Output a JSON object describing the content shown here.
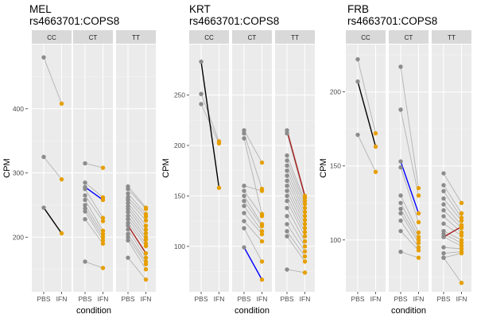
{
  "colors": {
    "panel_bg": "#ebebeb",
    "strip_bg": "#d9d9d9",
    "grid_major": "#ffffff",
    "grey_point": "#8c8c8c",
    "grey_line": "#b3b3b3",
    "ifn_point": "#e69f00",
    "highlight_cc": "#000000",
    "highlight_ct": "#0000ff",
    "highlight_tt": "#a51c1c"
  },
  "chart_data": [
    {
      "type": "line",
      "title": "MEL",
      "subtitle": "rs4663701:COPS8",
      "xlabel": "condition",
      "ylabel": "CPM",
      "ylim": [
        115,
        500
      ],
      "yticks": [
        200,
        300,
        400
      ],
      "categories": [
        "PBS",
        "IFN"
      ],
      "facets": [
        {
          "label": "CC",
          "highlight": 2,
          "highlight_color": "#000000",
          "pairs": [
            [
              480,
              408
            ],
            [
              325,
              290
            ],
            [
              246,
              206
            ]
          ]
        },
        {
          "label": "CT",
          "highlight": 0,
          "highlight_color": "#0000ff",
          "pairs": [
            [
              278,
              258
            ],
            [
              315,
              308
            ],
            [
              285,
              262
            ],
            [
              275,
              230
            ],
            [
              265,
              225
            ],
            [
              258,
              210
            ],
            [
              250,
              205
            ],
            [
              245,
              200
            ],
            [
              240,
              195
            ],
            [
              228,
              190
            ],
            [
              162,
              152
            ]
          ]
        },
        {
          "label": "TT",
          "highlight": 12,
          "highlight_color": "#a51c1c",
          "pairs": [
            [
              279,
              246
            ],
            [
              275,
              244
            ],
            [
              268,
              236
            ],
            [
              262,
              232
            ],
            [
              258,
              226
            ],
            [
              253,
              218
            ],
            [
              248,
              212
            ],
            [
              244,
              206
            ],
            [
              239,
              200
            ],
            [
              233,
              196
            ],
            [
              228,
              190
            ],
            [
              222,
              186
            ],
            [
              218,
              175
            ],
            [
              212,
              168
            ],
            [
              205,
              162
            ],
            [
              200,
              158
            ],
            [
              195,
              150
            ],
            [
              168,
              134
            ]
          ]
        }
      ]
    },
    {
      "type": "line",
      "title": "KRT",
      "subtitle": "rs4663701:COPS8",
      "xlabel": "condition",
      "ylabel": "CPM",
      "ylim": [
        55,
        300
      ],
      "yticks": [
        100,
        150,
        200,
        250
      ],
      "categories": [
        "PBS",
        "IFN"
      ],
      "facets": [
        {
          "label": "CC",
          "highlight": 0,
          "highlight_color": "#000000",
          "pairs": [
            [
              283,
              158
            ],
            [
              251,
              204
            ],
            [
              241,
              202
            ]
          ]
        },
        {
          "label": "CT",
          "highlight": 11,
          "highlight_color": "#0000ff",
          "pairs": [
            [
              215,
              183
            ],
            [
              212,
              157
            ],
            [
              207,
              132
            ],
            [
              160,
              155
            ],
            [
              155,
              130
            ],
            [
              150,
              122
            ],
            [
              145,
              120
            ],
            [
              140,
              115
            ],
            [
              133,
              112
            ],
            [
              125,
              105
            ],
            [
              118,
              85
            ],
            [
              99,
              67
            ]
          ]
        },
        {
          "label": "TT",
          "highlight": 0,
          "highlight_color": "#a51c1c",
          "pairs": [
            [
              215,
              150
            ],
            [
              212,
              148
            ],
            [
              190,
              145
            ],
            [
              185,
              142
            ],
            [
              180,
              138
            ],
            [
              175,
              134
            ],
            [
              170,
              130
            ],
            [
              165,
              126
            ],
            [
              160,
              122
            ],
            [
              155,
              118
            ],
            [
              150,
              114
            ],
            [
              145,
              110
            ],
            [
              138,
              105
            ],
            [
              130,
              100
            ],
            [
              122,
              95
            ],
            [
              115,
              90
            ],
            [
              110,
              85
            ],
            [
              77,
              74
            ]
          ]
        }
      ]
    },
    {
      "type": "line",
      "title": "FRB",
      "subtitle": "rs4663701:COPS8",
      "xlabel": "condition",
      "ylabel": "CPM",
      "ylim": [
        65,
        232
      ],
      "yticks": [
        100,
        150,
        200
      ],
      "categories": [
        "PBS",
        "IFN"
      ],
      "facets": [
        {
          "label": "CC",
          "highlight": 1,
          "highlight_color": "#000000",
          "pairs": [
            [
              222,
              172
            ],
            [
              207,
              163
            ],
            [
              171,
              146
            ]
          ]
        },
        {
          "label": "CT",
          "highlight": 2,
          "highlight_color": "#0000ff",
          "pairs": [
            [
              217,
              135
            ],
            [
              188,
              130
            ],
            [
              153,
              118
            ],
            [
              149,
              112
            ],
            [
              130,
              105
            ],
            [
              125,
              102
            ],
            [
              121,
              100
            ],
            [
              118,
              98
            ],
            [
              113,
              95
            ],
            [
              106,
              93
            ],
            [
              92,
              88
            ]
          ]
        },
        {
          "label": "TT",
          "highlight": 11,
          "highlight_color": "#a51c1c",
          "pairs": [
            [
              145,
              125
            ],
            [
              137,
              118
            ],
            [
              133,
              115
            ],
            [
              128,
              113
            ],
            [
              124,
              110
            ],
            [
              120,
              108
            ],
            [
              116,
              105
            ],
            [
              111,
              103
            ],
            [
              106,
              100
            ],
            [
              104,
              98
            ],
            [
              102,
              96
            ],
            [
              102,
              109
            ],
            [
              95,
              94
            ],
            [
              91,
              92
            ],
            [
              88,
              91
            ],
            [
              88,
              71
            ]
          ]
        }
      ]
    }
  ]
}
